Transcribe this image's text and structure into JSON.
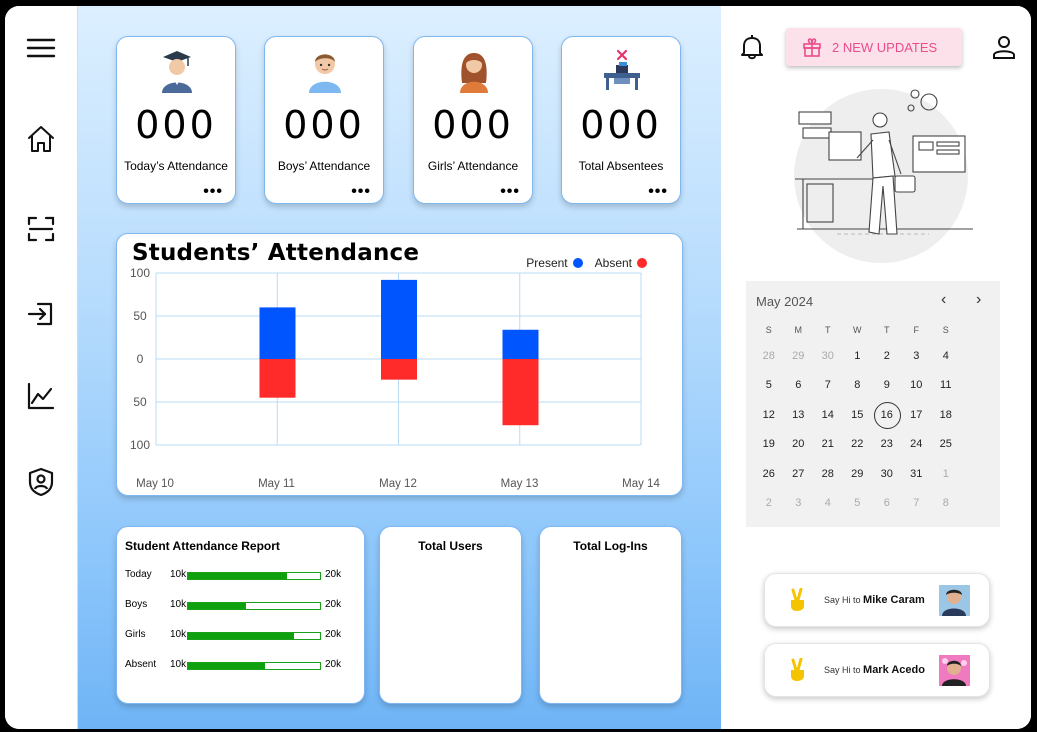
{
  "stats": [
    {
      "count": "000",
      "label": "Today’s Attendance",
      "icon": "graduate-icon"
    },
    {
      "count": "000",
      "label": "Boys’ Attendance",
      "icon": "boy-icon"
    },
    {
      "count": "000",
      "label": "Girls’ Attendance",
      "icon": "girl-icon"
    },
    {
      "count": "000",
      "label": "Total Absentees",
      "icon": "empty-desk-icon"
    }
  ],
  "more_label": "•••",
  "chart": {
    "title": "Students’ Attendance",
    "legend_present": "Present",
    "legend_absent": "Absent",
    "present_color": "#0055ff",
    "absent_color": "#ff2a2a"
  },
  "chart_data": {
    "type": "bar",
    "title": "Students’ Attendance",
    "categories": [
      "May 10",
      "May 11",
      "May 12",
      "May 13",
      "May 14"
    ],
    "y_tick_labels": [
      "100",
      "50",
      "0",
      "50",
      "100"
    ],
    "ylim": [
      -100,
      100
    ],
    "grid": true,
    "legend": "top-right",
    "series": [
      {
        "name": "Present",
        "color": "#0055ff",
        "values": [
          null,
          60,
          92,
          34,
          null
        ]
      },
      {
        "name": "Absent",
        "color": "#ff2a2a",
        "values": [
          null,
          -45,
          -24,
          -77,
          null
        ]
      }
    ]
  },
  "report": {
    "title": "Student Attendance Report",
    "rows": [
      {
        "label": "Today",
        "low": "10k",
        "high": "20k",
        "fill": 0.75
      },
      {
        "label": "Boys",
        "low": "10k",
        "high": "20k",
        "fill": 0.44
      },
      {
        "label": "Girls",
        "low": "10k",
        "high": "20k",
        "fill": 0.8
      },
      {
        "label": "Absent",
        "low": "10k",
        "high": "20k",
        "fill": 0.58
      }
    ]
  },
  "total_users": {
    "title": "Total Users"
  },
  "total_logins": {
    "title": "Total Log-Ins"
  },
  "header": {
    "updates_label": "2 NEW UPDATES"
  },
  "calendar": {
    "month": "May 2024",
    "weekdays": [
      "S",
      "M",
      "T",
      "W",
      "T",
      "F",
      "S"
    ],
    "weeks": [
      [
        "28",
        "29",
        "30",
        "1",
        "2",
        "3",
        "4"
      ],
      [
        "5",
        "6",
        "7",
        "8",
        "9",
        "10",
        "11"
      ],
      [
        "12",
        "13",
        "14",
        "15",
        "16",
        "17",
        "18"
      ],
      [
        "19",
        "20",
        "21",
        "22",
        "23",
        "24",
        "25"
      ],
      [
        "26",
        "27",
        "28",
        "29",
        "30",
        "31",
        "1"
      ],
      [
        "2",
        "3",
        "4",
        "5",
        "6",
        "7",
        "8"
      ]
    ],
    "today": "16"
  },
  "contacts": [
    {
      "prefix": "Say Hi to",
      "name": "Mike Caram"
    },
    {
      "prefix": "Say Hi to",
      "name": "Mark Acedo"
    }
  ]
}
